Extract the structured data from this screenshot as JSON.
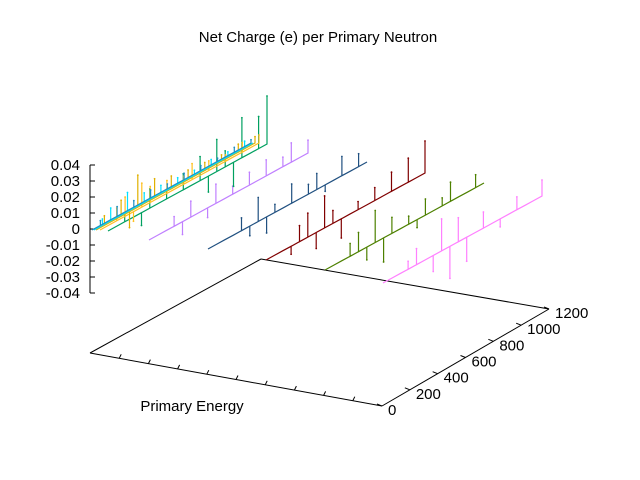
{
  "chart_data": {
    "type": "line",
    "title": "Net Charge (e) per Primary Neutron",
    "xlabel": "Primary Energy",
    "ylabel": "",
    "zlabel": "",
    "y_ticks": [
      "0",
      "200",
      "400",
      "600",
      "800",
      "1000",
      "1200"
    ],
    "z_ticks": [
      "0.04",
      "0.03",
      "0.02",
      "0.01",
      "0",
      "-0.01",
      "-0.02",
      "-0.03",
      "-0.04"
    ],
    "ylim": [
      0,
      1200
    ],
    "zlim": [
      -0.04,
      0.04
    ],
    "grid": false,
    "series": [
      {
        "color": "#ff80ff",
        "values": [
          0,
          0,
          0,
          0.005,
          0.01,
          0,
          -0.01,
          0.02,
          -0.02,
          0.015,
          -0.015,
          0,
          0.01,
          0,
          -0.005,
          0,
          0.008,
          0,
          0,
          0.01
        ]
      },
      {
        "color": "#4d8000",
        "values": [
          0,
          0,
          0,
          0.008,
          0.012,
          -0.008,
          0.02,
          -0.015,
          0.01,
          0,
          0.005,
          -0.005,
          0.01,
          0,
          0.005,
          0.012,
          0,
          0,
          0.008,
          0
        ]
      },
      {
        "color": "#800000",
        "values": [
          0,
          0,
          0,
          -0.005,
          0.01,
          0.015,
          -0.01,
          0.02,
          0.008,
          -0.012,
          0,
          0.005,
          0,
          0.008,
          0,
          0.012,
          0,
          0.015,
          0,
          0.02
        ]
      },
      {
        "color": "#205080",
        "values": [
          0,
          0,
          0,
          0,
          0.008,
          -0.006,
          0.015,
          -0.01,
          0.005,
          0,
          0.012,
          0,
          0.006,
          0.01,
          -0.004,
          0,
          0.012,
          0,
          0.008,
          0
        ]
      },
      {
        "color": "#c080ff",
        "values": [
          0,
          0,
          0,
          0.006,
          -0.008,
          0.01,
          0,
          -0.006,
          0.012,
          0,
          0.005,
          0,
          0.008,
          0,
          0.01,
          0,
          0.006,
          0.012,
          0,
          0.008
        ]
      },
      {
        "color": "#00a060",
        "values": [
          0,
          0,
          0.005,
          0,
          -0.008,
          0.012,
          0,
          0.006,
          0,
          0.01,
          0,
          0.015,
          -0.01,
          0.02,
          0.01,
          -0.015,
          0.025,
          0,
          0.02,
          0.03
        ]
      },
      {
        "color": "#ffc020",
        "values": [
          0,
          0,
          0.008,
          0.012,
          -0.006,
          0.015,
          0.01,
          0,
          0.008,
          0,
          0.005,
          0.01,
          0,
          0.006,
          0,
          0.004,
          0,
          0.006,
          0,
          0.005
        ]
      },
      {
        "color": "#e0b000",
        "values": [
          0,
          0.006,
          0,
          0.01,
          -0.01,
          0.02,
          0,
          0.012,
          0,
          0.008,
          0,
          0.006,
          0,
          0.005,
          0,
          0.004,
          0,
          0.005,
          0,
          0.004
        ]
      },
      {
        "color": "#00e0ff",
        "values": [
          0,
          0.004,
          0.008,
          0,
          0.012,
          0,
          0.006,
          0,
          0.005,
          0,
          0.004,
          0,
          0.003,
          0,
          0.004,
          0,
          0.003,
          0,
          0.004,
          0
        ]
      },
      {
        "color": "#2090c0",
        "values": [
          0,
          0.003,
          0,
          0.006,
          0,
          0.004,
          0,
          0.005,
          0,
          0.003,
          0,
          0.004,
          0,
          0.003,
          0,
          0.002,
          0,
          0.003,
          0,
          0.002
        ]
      }
    ]
  }
}
